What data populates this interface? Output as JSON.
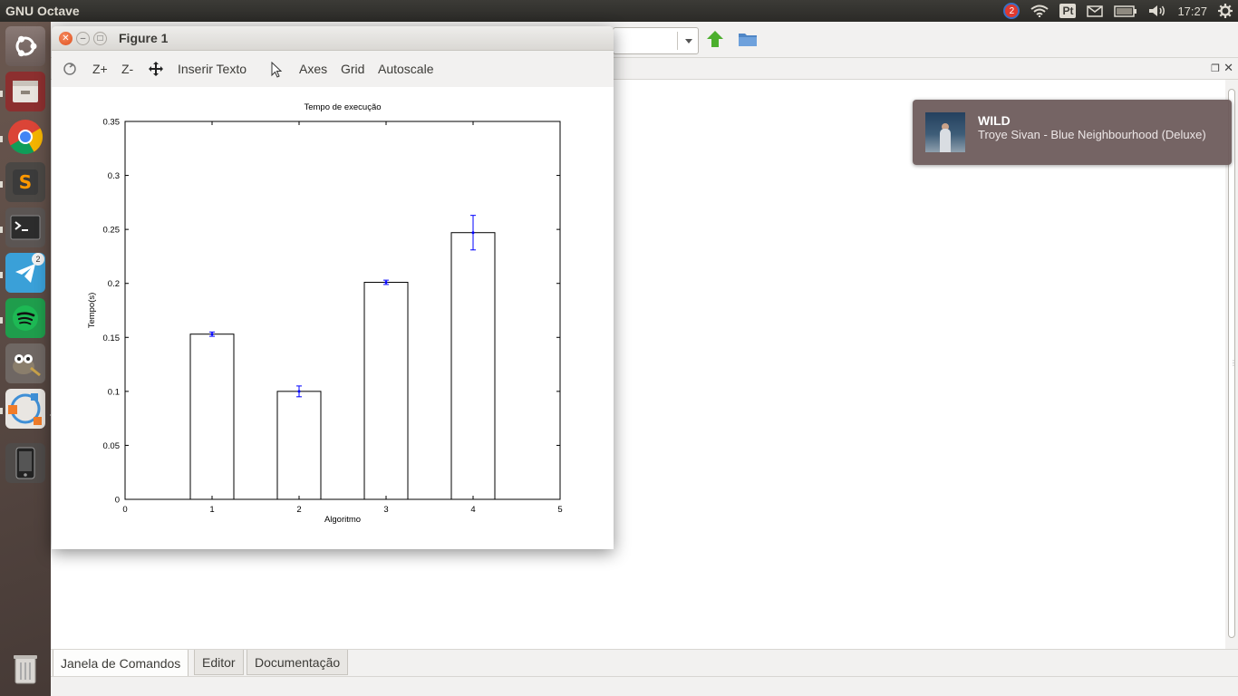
{
  "top_panel": {
    "app_title": "GNU Octave",
    "notification_count": "2",
    "language": "Pt",
    "clock": "17:27"
  },
  "launcher": {
    "telegram_badge": "2"
  },
  "octave": {
    "tabs": [
      "Janela de Comandos",
      "Editor",
      "Documentação"
    ]
  },
  "notification": {
    "title": "WILD",
    "body": "Troye Sivan - Blue Neighbourhood (Deluxe)"
  },
  "figure": {
    "title": "Figure 1",
    "toolbar": {
      "zoom_in": "Z+",
      "zoom_out": "Z-",
      "insert_text": "Inserir Texto",
      "axes": "Axes",
      "grid": "Grid",
      "autoscale": "Autoscale"
    }
  },
  "chart_data": {
    "type": "bar",
    "title": "Tempo de execução",
    "xlabel": "Algoritmo",
    "ylabel": "Tempo(s)",
    "x": [
      1,
      2,
      3,
      4
    ],
    "values": [
      0.153,
      0.1,
      0.201,
      0.247
    ],
    "errors": [
      0.002,
      0.005,
      0.002,
      0.016
    ],
    "xlim": [
      0,
      5
    ],
    "ylim": [
      0,
      0.35
    ],
    "xticks": [
      "0",
      "1",
      "2",
      "3",
      "4",
      "5"
    ],
    "yticks": [
      "0",
      "0.05",
      "0.1",
      "0.15",
      "0.2",
      "0.25",
      "0.3",
      "0.35"
    ],
    "bar_color": "#ffffff",
    "edge_color": "#000000",
    "error_color": "#0000ff",
    "grid": false
  }
}
